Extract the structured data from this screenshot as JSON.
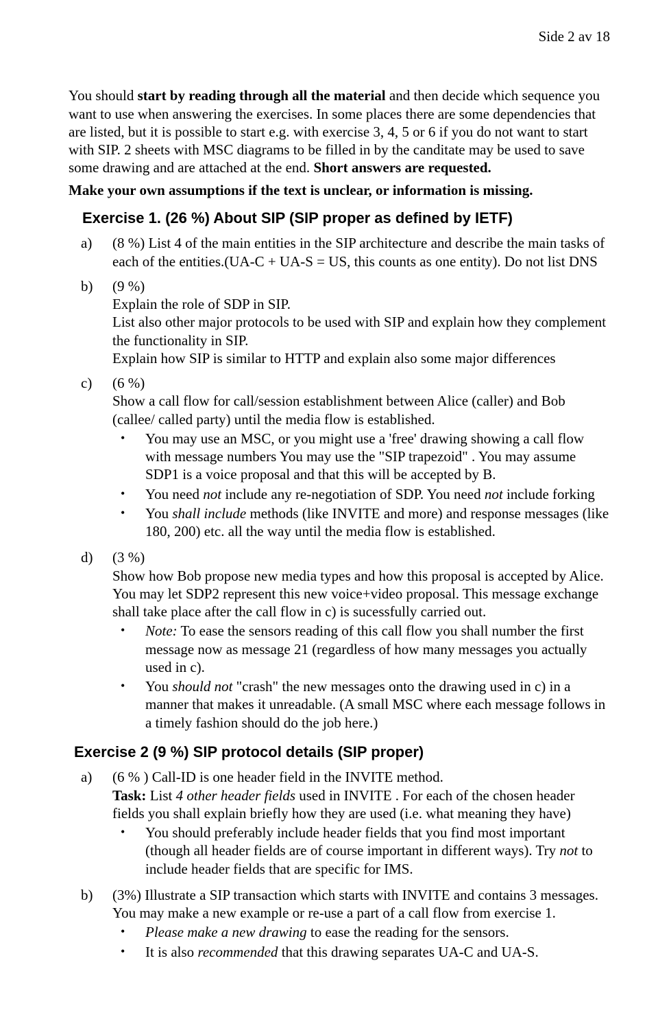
{
  "header": {
    "page_label": "Side 2 av 18"
  },
  "intro": {
    "p1_a": "You should ",
    "p1_b": "start by reading through all the material",
    "p1_c": " and then decide which sequence you want to use when answering the exercises. In some places there are some dependencies that are listed, but it is possible to start e.g. with exercise 3, 4, 5 or 6 if you do not want to start with SIP. 2 sheets with MSC diagrams to be filled in by the canditate may be used to save some drawing and are attached at the end. ",
    "p1_d": "Short answers are requested."
  },
  "assumptions": "Make your own assumptions if the text is unclear, or information is missing.",
  "ex1": {
    "title": "Exercise 1. (26 %) About SIP (SIP proper as defined by IETF)",
    "a": {
      "marker": "a)",
      "text": "(8 %) List  4 of the main entities in the SIP architecture and describe the main tasks of each of the entities.(UA-C + UA-S = US, this counts as one entity). Do not list DNS"
    },
    "b": {
      "marker": "b)",
      "pct": "(9 %)",
      "l1": "Explain the role of SDP in SIP.",
      "l2": "List also other major protocols to be used with SIP and explain how they complement the functionality in SIP.",
      "l3": "Explain how SIP is similar to HTTP and explain also some major differences"
    },
    "c": {
      "marker": "c)",
      "pct": "(6 %)",
      "intro": "Show a call flow for call/session establishment between Alice (caller) and Bob (callee/ called party)  until the media flow is established.",
      "b1": "You may use an MSC, or you might use a 'free' drawing showing a call flow with message numbers You may use the \"SIP trapezoid\" . You may assume SDP1 is a voice proposal and that this will be accepted by B.",
      "b2_a": "You need ",
      "b2_b": "not",
      "b2_c": " include any re-negotiation of SDP. You need ",
      "b2_d": "not",
      "b2_e": " include forking",
      "b3_a": "You ",
      "b3_b": "shall include",
      "b3_c": " methods (like INVITE and more) and response messages (like 180, 200) etc. all the way until the media flow is established."
    },
    "d": {
      "marker": "d)",
      "pct": "(3 %)",
      "intro": "Show how Bob propose new media types and how this proposal is accepted by Alice. You may let SDP2 represent this new voice+video proposal. This message exchange shall take place after the call flow in c) is sucessfully carried out.",
      "b1_a": "Note:",
      "b1_b": " To ease the sensors reading of this call flow you shall number the first message now as message 21 (regardless of how many messages you actually used in c).",
      "b2_a": "You ",
      "b2_b": "should not",
      "b2_c": "  \"crash\" the new messages onto the drawing used in c) in a manner that makes it unreadable. (A small MSC where each message follows in a timely fashion should do the job here.)"
    }
  },
  "ex2": {
    "title": "Exercise 2 (9 %) SIP protocol details (SIP proper)",
    "a": {
      "marker": "a)",
      "l1": "(6 % ) Call-ID is one header field in the INVITE method.",
      "l2_a": "Task:",
      "l2_b": " List ",
      "l2_c": "4 other header fields",
      "l2_d": " used in  INVITE . For each of the chosen header fields you shall explain briefly how they are used (i.e. what meaning they have)",
      "b1_a": "You should preferably include header fields that you find most important (though all header fields are of course important in different ways). Try ",
      "b1_b": "not",
      "b1_c": " to include header fields that are specific for IMS."
    },
    "b": {
      "marker": "b)",
      "l1": "(3%) Illustrate a SIP transaction which starts with INVITE and contains 3 messages. You may make a new  example or re-use a part of a call flow from exercise 1.",
      "b1_a": "Please make a new drawing",
      "b1_b": " to ease the reading for the sensors.",
      "b2_a": "It is also ",
      "b2_b": "recommended",
      "b2_c": " that this drawing separates UA-C and UA-S."
    }
  }
}
